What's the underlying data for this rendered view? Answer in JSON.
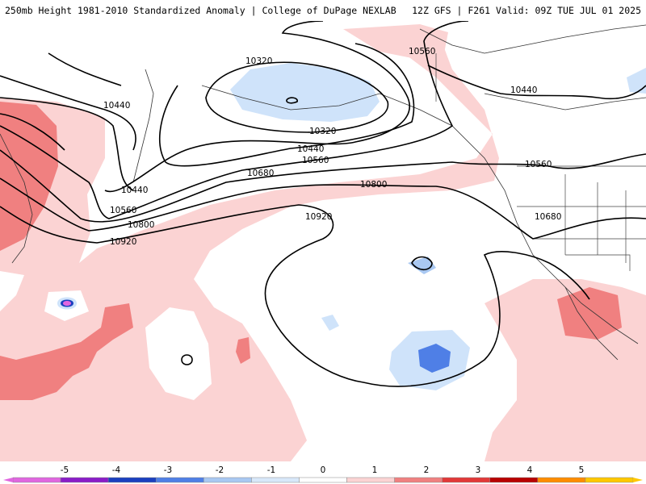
{
  "header": {
    "left": "250mb Height 1981-2010 Standardized Anomaly | College of DuPage NEXLAB",
    "right": "12Z GFS | F261 Valid: 09Z TUE JUL 01 2025"
  },
  "contours": {
    "labels": [
      "10320",
      "10320",
      "10440",
      "10440",
      "10440",
      "10440",
      "10560",
      "10560",
      "10560",
      "10560",
      "10680",
      "10680",
      "10800",
      "10800",
      "10920",
      "10920"
    ]
  },
  "colorbar": {
    "ticks": [
      "-5",
      "-4",
      "-3",
      "-2",
      "-1",
      "0",
      "1",
      "2",
      "3",
      "4",
      "5"
    ],
    "colors": [
      "#e066e0",
      "#8a1cc8",
      "#1a3fbf",
      "#4f7fe6",
      "#a9c8f2",
      "#d8e8fa",
      "#ffffff",
      "#fbd3d3",
      "#f08080",
      "#e23838",
      "#b80000",
      "#ff8c00",
      "#ffc800"
    ]
  }
}
